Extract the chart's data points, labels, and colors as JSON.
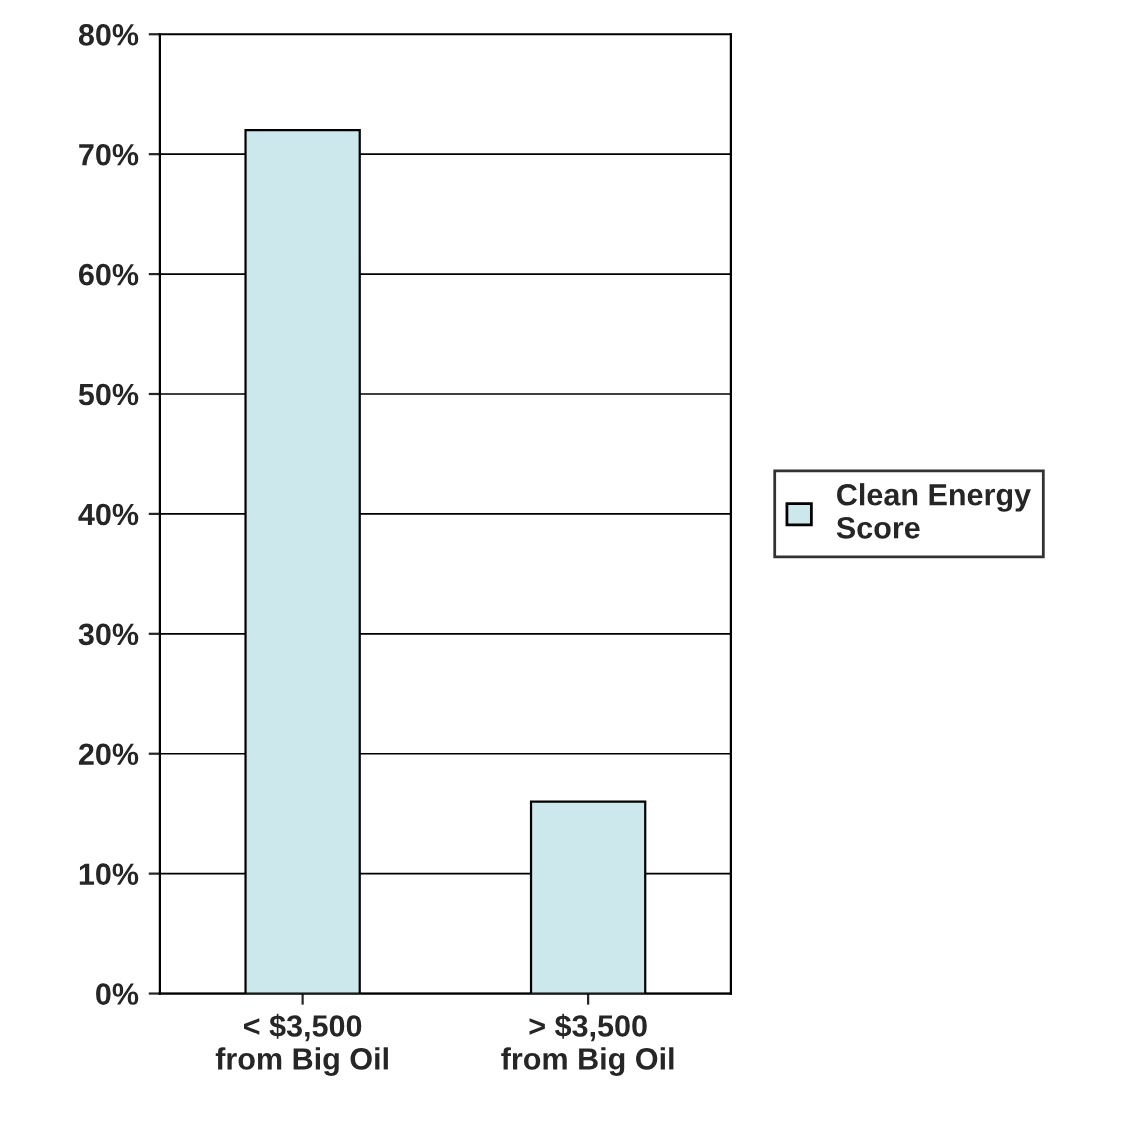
{
  "chart_data": {
    "type": "bar",
    "categories": [
      "< $3,500\nfrom Big Oil",
      "> $3,500\nfrom Big Oil"
    ],
    "series": [
      {
        "name": "Clean Energy\nScore",
        "color": "#cce8ec",
        "values": [
          72,
          16
        ]
      }
    ],
    "ylim": [
      0,
      80
    ],
    "yticks": [
      {
        "value": 0,
        "label": "0%"
      },
      {
        "value": 10,
        "label": "10%"
      },
      {
        "value": 20,
        "label": "20%"
      },
      {
        "value": 30,
        "label": "30%"
      },
      {
        "value": 40,
        "label": "40%"
      },
      {
        "value": 50,
        "label": "50%"
      },
      {
        "value": 60,
        "label": "60%"
      },
      {
        "value": 70,
        "label": "70%"
      },
      {
        "value": 80,
        "label": "80%"
      }
    ],
    "grid": "y",
    "legend": "right"
  }
}
